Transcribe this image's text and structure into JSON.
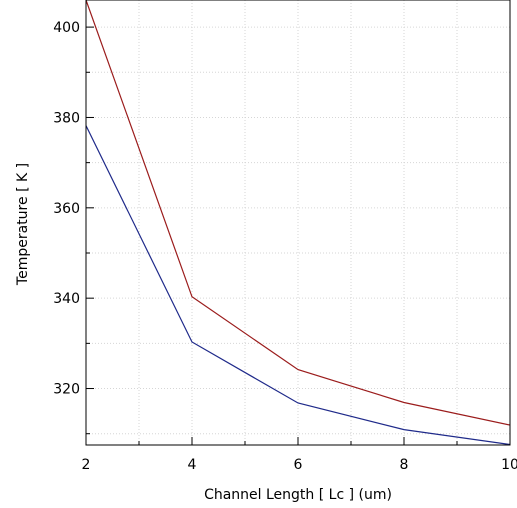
{
  "chart_data": {
    "type": "line",
    "xlabel": "Channel Length [ Lc ] (um)",
    "ylabel": "Temperature [ K ]",
    "xlim": [
      2,
      10
    ],
    "ylim": [
      307.5,
      406
    ],
    "x_ticks": [
      "2",
      "4",
      "6",
      "8",
      "10"
    ],
    "y_ticks": [
      "320",
      "340",
      "360",
      "380",
      "400"
    ],
    "grid": true,
    "x": [
      2,
      4,
      6,
      8,
      10
    ],
    "series": [
      {
        "color": "#9b1c1c",
        "values": [
          406,
          340.3,
          324.2,
          316.9,
          311.9
        ]
      },
      {
        "color": "#1f2a8a",
        "values": [
          378.2,
          330.3,
          316.8,
          310.9,
          307.6
        ]
      }
    ]
  }
}
